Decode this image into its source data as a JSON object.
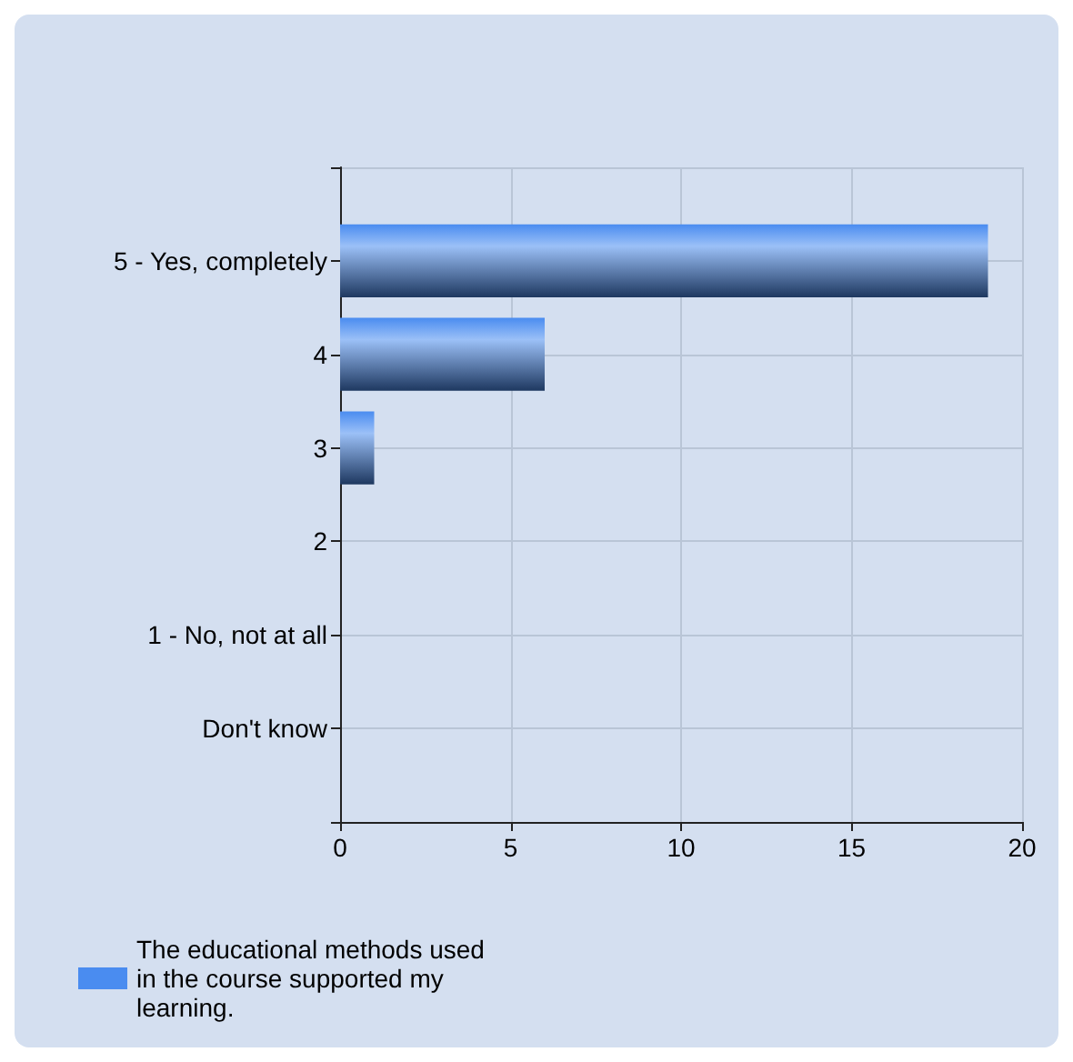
{
  "chart_data": {
    "type": "bar",
    "orientation": "horizontal",
    "categories": [
      "5 - Yes, completely",
      "4",
      "3",
      "2",
      "1 - No, not at all",
      "Don't know"
    ],
    "series": [
      {
        "name": "The educational methods used in the course supported my learning.",
        "color": "#4a8cf0",
        "values": [
          19,
          6,
          1,
          0,
          0,
          0
        ]
      }
    ],
    "xlim": [
      0,
      20
    ],
    "xticks": [
      0,
      5,
      10,
      15,
      20
    ],
    "grid": true,
    "legend": "bottom left"
  }
}
